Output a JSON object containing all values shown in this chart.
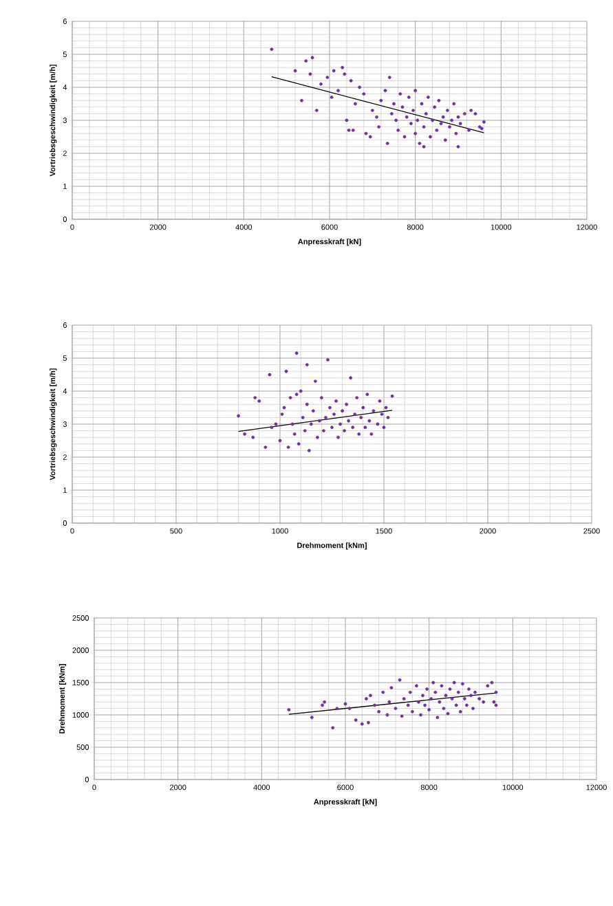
{
  "chart_data": [
    {
      "type": "scatter",
      "xlabel": "Anpresskraft [kN]",
      "ylabel": "Vortriebsgeschwindigkeit [m/h]",
      "xlim": [
        0,
        12000
      ],
      "ylim": [
        0,
        6
      ],
      "xticks": [
        0,
        2000,
        4000,
        6000,
        8000,
        10000,
        12000
      ],
      "yticks": [
        0,
        1,
        2,
        3,
        4,
        5,
        6
      ],
      "grid": true,
      "series": [
        {
          "color": "#7030a0",
          "marker": "circle",
          "x": [
            4650,
            5200,
            5450,
            5600,
            5550,
            5700,
            5350,
            5800,
            5950,
            6100,
            6300,
            6350,
            6500,
            6200,
            6050,
            6400,
            6450,
            6550,
            6600,
            6700,
            6800,
            6850,
            6950,
            7000,
            7100,
            7150,
            7200,
            7300,
            7350,
            7400,
            7450,
            7500,
            7550,
            7600,
            7650,
            7700,
            7750,
            7800,
            7850,
            7900,
            7950,
            8000,
            8000,
            8050,
            8100,
            8150,
            8200,
            8250,
            8300,
            8350,
            8400,
            8450,
            8500,
            8550,
            8600,
            8650,
            8700,
            8750,
            8800,
            8850,
            8900,
            8950,
            9000,
            9050,
            9150,
            9250,
            9300,
            9400,
            9500,
            9600,
            9550,
            8200,
            9000
          ],
          "values": [
            5.15,
            4.5,
            4.8,
            4.9,
            4.4,
            3.3,
            3.6,
            4.1,
            4.3,
            4.5,
            4.6,
            4.4,
            4.2,
            3.9,
            3.7,
            3.0,
            2.7,
            2.7,
            3.5,
            4.0,
            3.8,
            2.6,
            2.5,
            3.3,
            3.1,
            2.8,
            3.6,
            3.9,
            2.3,
            4.3,
            3.2,
            3.5,
            3.0,
            2.7,
            3.8,
            3.4,
            2.5,
            3.1,
            3.7,
            2.9,
            3.3,
            2.6,
            3.9,
            3.0,
            2.3,
            3.5,
            2.8,
            3.2,
            3.7,
            2.5,
            3.0,
            3.4,
            2.7,
            3.6,
            2.9,
            3.1,
            2.4,
            3.3,
            2.8,
            3.0,
            3.5,
            2.6,
            3.1,
            2.9,
            3.2,
            2.7,
            3.3,
            3.2,
            2.8,
            2.95,
            2.75,
            2.2,
            2.2
          ]
        },
        {
          "type": "line",
          "color": "#000000",
          "marker": "none",
          "x": [
            4650,
            9600
          ],
          "values": [
            4.32,
            2.62
          ]
        }
      ]
    },
    {
      "type": "scatter",
      "xlabel": "Drehmoment [kNm]",
      "ylabel": "Vortriebsgeschwindigkeit [m/h]",
      "xlim": [
        0,
        2500
      ],
      "ylim": [
        0,
        6
      ],
      "xticks": [
        0,
        500,
        1000,
        1500,
        2000,
        2500
      ],
      "yticks": [
        0,
        1,
        2,
        3,
        4,
        5,
        6
      ],
      "grid": true,
      "series": [
        {
          "color": "#7030a0",
          "marker": "circle",
          "x": [
            800,
            830,
            870,
            880,
            900,
            930,
            950,
            960,
            980,
            1000,
            1010,
            1020,
            1030,
            1040,
            1050,
            1060,
            1070,
            1080,
            1080,
            1090,
            1100,
            1110,
            1120,
            1130,
            1130,
            1140,
            1150,
            1160,
            1170,
            1180,
            1190,
            1200,
            1210,
            1220,
            1230,
            1240,
            1250,
            1260,
            1270,
            1280,
            1290,
            1300,
            1310,
            1320,
            1330,
            1340,
            1350,
            1360,
            1370,
            1380,
            1390,
            1400,
            1410,
            1420,
            1430,
            1440,
            1450,
            1470,
            1480,
            1490,
            1500,
            1510,
            1520,
            1540
          ],
          "values": [
            3.25,
            2.7,
            2.6,
            3.8,
            3.7,
            2.3,
            4.5,
            2.9,
            3.0,
            2.5,
            3.3,
            3.5,
            4.6,
            2.3,
            3.8,
            3.0,
            2.7,
            5.15,
            3.9,
            2.4,
            4.0,
            3.2,
            2.8,
            4.8,
            3.6,
            2.2,
            3.0,
            3.4,
            4.3,
            2.6,
            3.1,
            3.8,
            2.8,
            3.2,
            4.95,
            3.5,
            2.9,
            3.3,
            3.7,
            2.6,
            3.0,
            3.4,
            2.8,
            3.6,
            3.1,
            4.4,
            2.9,
            3.3,
            3.8,
            2.7,
            3.2,
            3.5,
            2.9,
            3.9,
            3.1,
            2.7,
            3.4,
            3.0,
            3.7,
            3.3,
            2.9,
            3.5,
            3.2,
            3.85
          ]
        },
        {
          "type": "line",
          "color": "#000000",
          "marker": "none",
          "x": [
            800,
            1540
          ],
          "values": [
            2.78,
            3.42
          ]
        }
      ]
    },
    {
      "type": "scatter",
      "xlabel": "Anpresskraft [kN]",
      "ylabel": "Drehmoment [kNm]",
      "xlim": [
        0,
        12000
      ],
      "ylim": [
        0,
        2500
      ],
      "xticks": [
        0,
        2000,
        4000,
        6000,
        8000,
        10000,
        12000
      ],
      "yticks": [
        0,
        500,
        1000,
        1500,
        2000,
        2500
      ],
      "grid": true,
      "series": [
        {
          "color": "#7030a0",
          "marker": "circle",
          "x": [
            4650,
            5200,
            5450,
            5500,
            5700,
            5800,
            6000,
            6100,
            6250,
            6400,
            6500,
            6550,
            6600,
            6700,
            6800,
            6900,
            7000,
            7050,
            7100,
            7200,
            7300,
            7350,
            7400,
            7500,
            7550,
            7600,
            7700,
            7750,
            7800,
            7850,
            7900,
            7950,
            8000,
            8050,
            8100,
            8150,
            8200,
            8250,
            8300,
            8350,
            8400,
            8450,
            8500,
            8550,
            8600,
            8650,
            8700,
            8750,
            8800,
            8850,
            8900,
            8950,
            9000,
            9050,
            9100,
            9200,
            9300,
            9400,
            9500,
            9550,
            9600,
            9600
          ],
          "values": [
            1080,
            960,
            1150,
            1200,
            800,
            1100,
            1170,
            1100,
            920,
            860,
            1250,
            880,
            1300,
            1150,
            1050,
            1350,
            1000,
            1200,
            1420,
            1100,
            1540,
            980,
            1250,
            1150,
            1350,
            1050,
            1450,
            1200,
            1000,
            1300,
            1150,
            1400,
            1080,
            1250,
            1500,
            1350,
            960,
            1200,
            1450,
            1100,
            1300,
            1020,
            1400,
            1250,
            1500,
            1150,
            1350,
            1050,
            1480,
            1250,
            1150,
            1400,
            1300,
            1100,
            1350,
            1250,
            1200,
            1450,
            1500,
            1200,
            1150,
            1350
          ]
        },
        {
          "type": "line",
          "color": "#000000",
          "marker": "none",
          "x": [
            4650,
            9600
          ],
          "values": [
            1010,
            1340
          ]
        }
      ]
    }
  ]
}
